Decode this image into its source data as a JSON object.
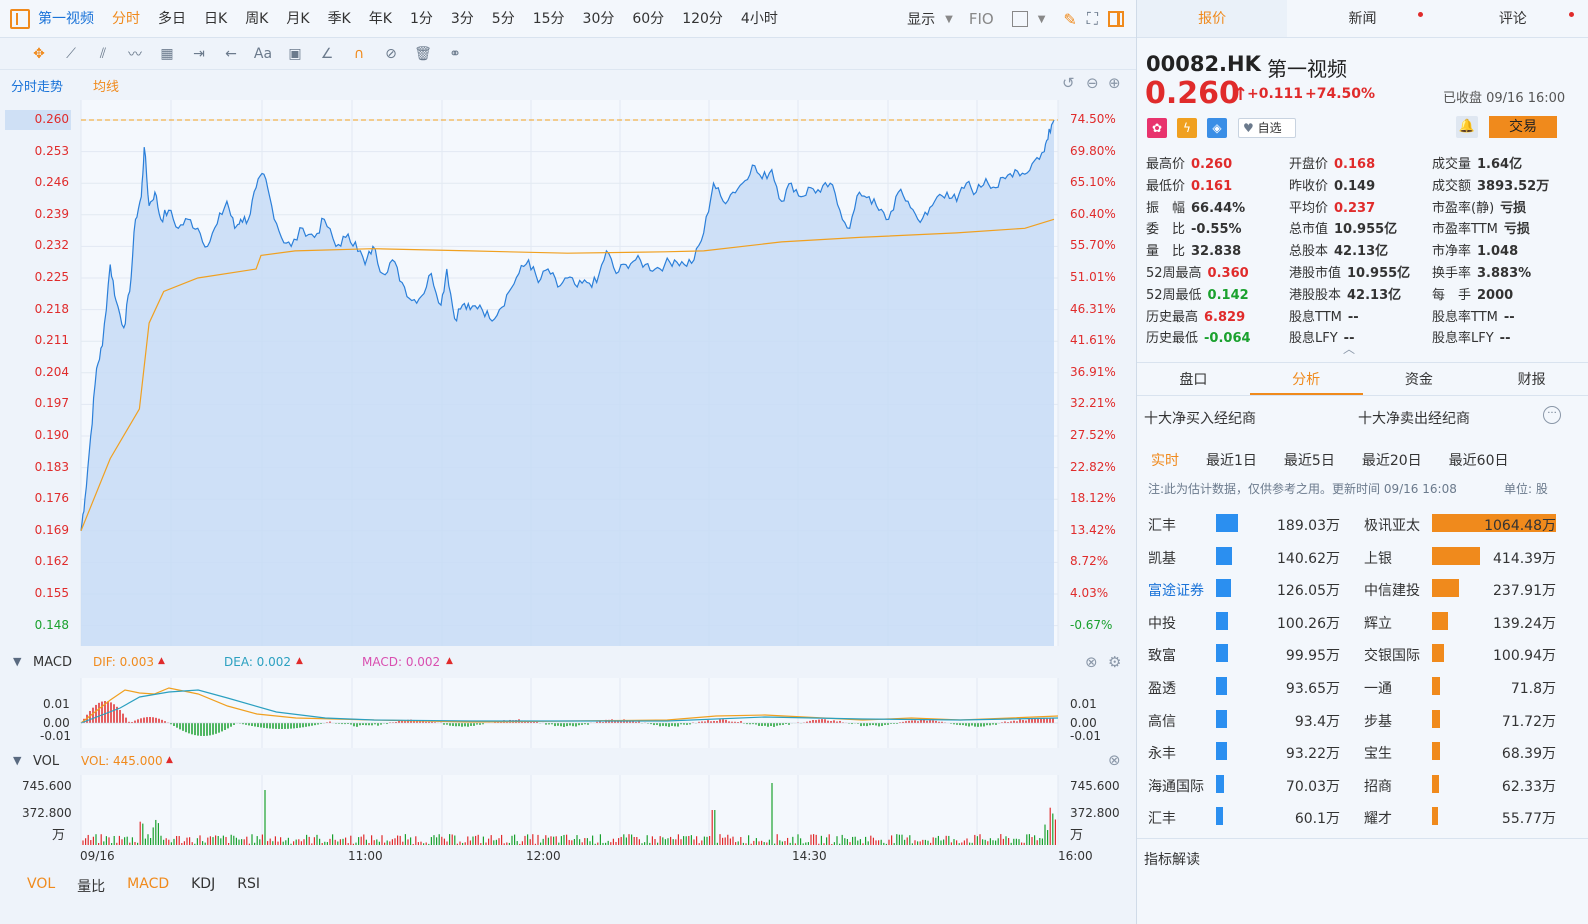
{
  "top_tabs": [
    {
      "label": "第一视频",
      "kind": "stock"
    },
    {
      "label": "分时",
      "kind": "active"
    },
    {
      "label": "多日"
    },
    {
      "label": "日K"
    },
    {
      "label": "周K"
    },
    {
      "label": "月K"
    },
    {
      "label": "季K"
    },
    {
      "label": "年K"
    },
    {
      "label": "1分"
    },
    {
      "label": "3分"
    },
    {
      "label": "5分"
    },
    {
      "label": "15分"
    },
    {
      "label": "30分"
    },
    {
      "label": "60分"
    },
    {
      "label": "120分"
    },
    {
      "label": "4小时"
    }
  ],
  "display_label": "显示",
  "fio_label": "FIO",
  "chart_header": {
    "mode": "分时走势",
    "ma": "均线"
  },
  "price_axis": [
    "0.260",
    "0.253",
    "0.246",
    "0.239",
    "0.232",
    "0.225",
    "0.218",
    "0.211",
    "0.204",
    "0.197",
    "0.190",
    "0.183",
    "0.176",
    "0.169",
    "0.162",
    "0.155",
    "0.148"
  ],
  "pct_axis": [
    "74.50%",
    "69.80%",
    "65.10%",
    "60.40%",
    "55.70%",
    "51.01%",
    "46.31%",
    "41.61%",
    "36.91%",
    "32.21%",
    "27.52%",
    "22.82%",
    "18.12%",
    "13.42%",
    "8.72%",
    "4.03%",
    "-0.67%"
  ],
  "macd": {
    "title": "MACD",
    "dif": "DIF: 0.003",
    "dea": "DEA: 0.002",
    "macd": "MACD: 0.002",
    "axis": [
      "0.01",
      "0.00",
      "-0.01"
    ]
  },
  "vol": {
    "title": "VOL",
    "value": "VOL: 445.000",
    "axis": [
      "745.600",
      "372.800",
      "万"
    ]
  },
  "time_axis": [
    "09/16",
    "11:00",
    "12:00",
    "14:30",
    "16:00"
  ],
  "bottom_tabs": [
    "VOL",
    "量比",
    "MACD",
    "KDJ",
    "RSI"
  ],
  "colors": {
    "accent": "#f08a1c",
    "up": "#e02b2b",
    "down": "#1aa12e",
    "line": "#2b7fd9",
    "avg": "#f0a020",
    "buy": "#2b8ff0"
  },
  "right": {
    "tabs": [
      {
        "label": "报价",
        "active": true
      },
      {
        "label": "新闻",
        "dot": true
      },
      {
        "label": "评论",
        "dot": true
      }
    ],
    "code": "00082.HK",
    "name": "第一视频",
    "price": "0.260",
    "change": "+0.111",
    "change_pct": "+74.50%",
    "status": "已收盘 09/16 16:00",
    "watch": "自选",
    "trade": "交易",
    "stats": [
      [
        {
          "k": "最高价",
          "v": "0.260",
          "c": "red"
        },
        {
          "k": "开盘价",
          "v": "0.168",
          "c": "red"
        },
        {
          "k": "成交量",
          "v": "1.64亿"
        }
      ],
      [
        {
          "k": "最低价",
          "v": "0.161",
          "c": "red"
        },
        {
          "k": "昨收价",
          "v": "0.149"
        },
        {
          "k": "成交额",
          "v": "3893.52万"
        }
      ],
      [
        {
          "k": "振　幅",
          "v": "66.44%"
        },
        {
          "k": "平均价",
          "v": "0.237",
          "c": "red"
        },
        {
          "k": "市盈率(静)",
          "v": "亏损"
        }
      ],
      [
        {
          "k": "委　比",
          "v": "-0.55%"
        },
        {
          "k": "总市值",
          "v": "10.955亿"
        },
        {
          "k": "市盈率TTM",
          "v": "亏损"
        }
      ],
      [
        {
          "k": "量　比",
          "v": "32.838"
        },
        {
          "k": "总股本",
          "v": "42.13亿"
        },
        {
          "k": "市净率",
          "v": "1.048"
        }
      ],
      [
        {
          "k": "52周最高",
          "v": "0.360",
          "c": "red"
        },
        {
          "k": "港股市值",
          "v": "10.955亿"
        },
        {
          "k": "换手率",
          "v": "3.883%"
        }
      ],
      [
        {
          "k": "52周最低",
          "v": "0.142",
          "c": "green"
        },
        {
          "k": "港股股本",
          "v": "42.13亿"
        },
        {
          "k": "每　手",
          "v": "2000"
        }
      ],
      [
        {
          "k": "历史最高",
          "v": "6.829",
          "c": "red"
        },
        {
          "k": "股息TTM",
          "v": "--"
        },
        {
          "k": "股息率TTM",
          "v": "--"
        }
      ],
      [
        {
          "k": "历史最低",
          "v": "-0.064",
          "c": "green"
        },
        {
          "k": "股息LFY",
          "v": "--"
        },
        {
          "k": "股息率LFY",
          "v": "--"
        }
      ]
    ],
    "subtabs": [
      {
        "label": "盘口"
      },
      {
        "label": "分析",
        "active": true
      },
      {
        "label": "资金"
      },
      {
        "label": "财报"
      }
    ],
    "broker_titles": {
      "buy": "十大净买入经纪商",
      "sell": "十大净卖出经纪商"
    },
    "periods": [
      {
        "label": "实时",
        "active": true
      },
      {
        "label": "最近1日"
      },
      {
        "label": "最近5日"
      },
      {
        "label": "最近20日"
      },
      {
        "label": "最近60日"
      }
    ],
    "note": "注:此为估计数据，仅供参考之用。更新时间 09/16 16:08",
    "unit": "单位: 股",
    "brokers": [
      {
        "buy": "汇丰",
        "buy_val": "189.03万",
        "buy_pct": 1.0,
        "sell": "极讯亚太",
        "sell_val": "1064.48万",
        "sell_pct": 1.0
      },
      {
        "buy": "凯基",
        "buy_val": "140.62万",
        "buy_pct": 0.74,
        "sell": "上银",
        "sell_val": "414.39万",
        "sell_pct": 0.39
      },
      {
        "buy": "富途证券",
        "buy_val": "126.05万",
        "buy_pct": 0.67,
        "sell": "中信建投",
        "sell_val": "237.91万",
        "sell_pct": 0.22,
        "link": true
      },
      {
        "buy": "中投",
        "buy_val": "100.26万",
        "buy_pct": 0.53,
        "sell": "辉立",
        "sell_val": "139.24万",
        "sell_pct": 0.13
      },
      {
        "buy": "致富",
        "buy_val": "99.95万",
        "buy_pct": 0.53,
        "sell": "交银国际",
        "sell_val": "100.94万",
        "sell_pct": 0.095
      },
      {
        "buy": "盈透",
        "buy_val": "93.65万",
        "buy_pct": 0.5,
        "sell": "一通",
        "sell_val": "71.8万",
        "sell_pct": 0.067
      },
      {
        "buy": "高信",
        "buy_val": "93.4万",
        "buy_pct": 0.49,
        "sell": "步基",
        "sell_val": "71.72万",
        "sell_pct": 0.067
      },
      {
        "buy": "永丰",
        "buy_val": "93.22万",
        "buy_pct": 0.49,
        "sell": "宝生",
        "sell_val": "68.39万",
        "sell_pct": 0.064
      },
      {
        "buy": "海通国际",
        "buy_val": "70.03万",
        "buy_pct": 0.37,
        "sell": "招商",
        "sell_val": "62.33万",
        "sell_pct": 0.059
      },
      {
        "buy": "汇丰",
        "buy_val": "60.1万",
        "buy_pct": 0.32,
        "sell": "耀才",
        "sell_val": "55.77万",
        "sell_pct": 0.052
      }
    ],
    "indicator_title": "指标解读"
  }
}
